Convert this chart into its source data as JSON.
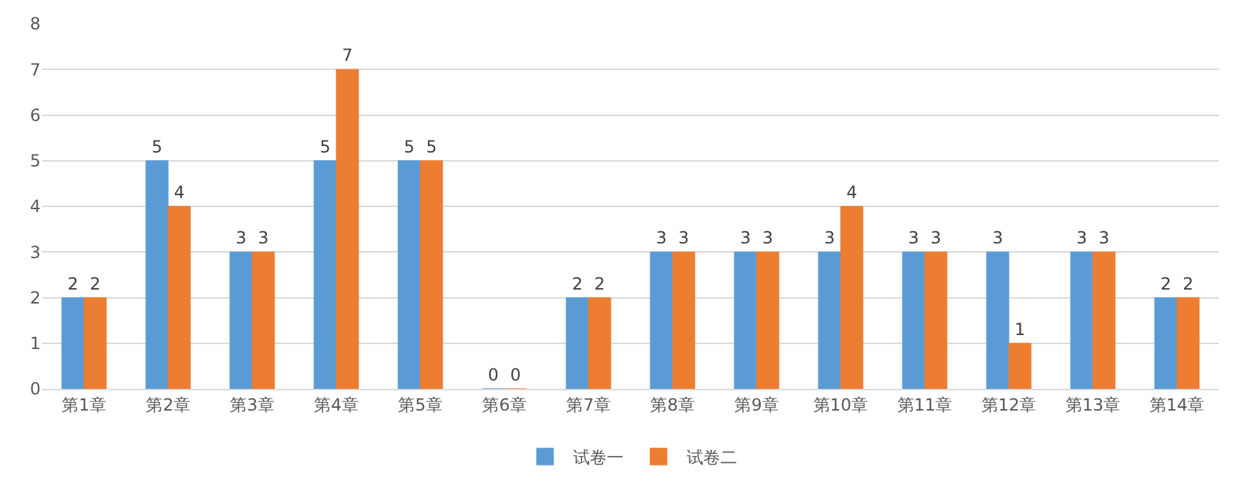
{
  "chart_data": {
    "type": "bar",
    "categories": [
      "第1章",
      "第2章",
      "第3章",
      "第4章",
      "第5章",
      "第6章",
      "第7章",
      "第8章",
      "第9章",
      "第10章",
      "第11章",
      "第12章",
      "第13章",
      "第14章"
    ],
    "series": [
      {
        "name": "试卷一",
        "color": "#5b9bd5",
        "values": [
          2,
          5,
          3,
          5,
          5,
          0,
          2,
          3,
          3,
          3,
          3,
          3,
          3,
          2
        ]
      },
      {
        "name": "试卷二",
        "color": "#ed7d31",
        "values": [
          2,
          4,
          3,
          7,
          5,
          0,
          2,
          3,
          3,
          4,
          3,
          1,
          3,
          2
        ]
      }
    ],
    "ylim": [
      0,
      8
    ],
    "yticks": [
      0,
      1,
      2,
      3,
      4,
      5,
      6,
      7,
      8
    ],
    "grid": "y",
    "legend": "bottom",
    "data_labels": true
  }
}
